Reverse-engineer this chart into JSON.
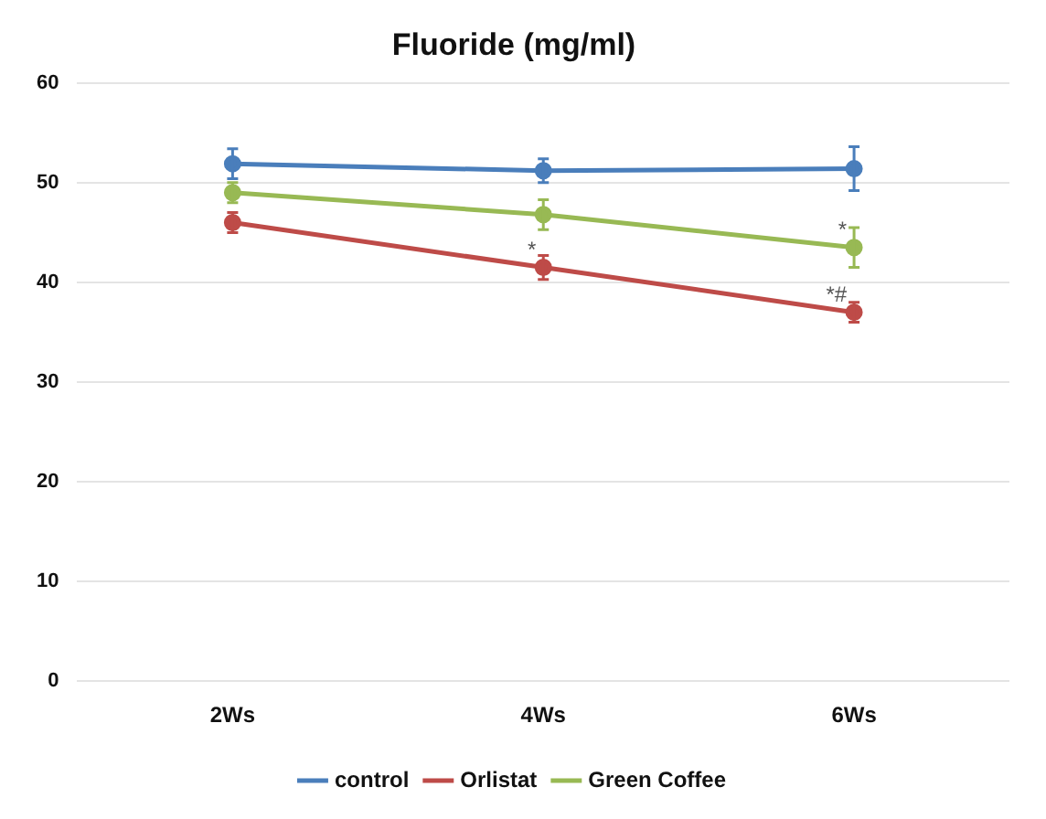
{
  "chart_data": {
    "type": "line",
    "title": "Fluoride (mg/ml)",
    "categories": [
      "2Ws",
      "4Ws",
      "6Ws"
    ],
    "series": [
      {
        "name": "control",
        "color": "#4a7ebb",
        "values": [
          51.9,
          51.2,
          51.4
        ],
        "errors": [
          1.5,
          1.2,
          2.2
        ]
      },
      {
        "name": "Orlistat",
        "color": "#be4b48",
        "values": [
          46,
          41.5,
          37
        ],
        "errors": [
          1,
          1.2,
          1
        ]
      },
      {
        "name": "Green Coffee",
        "color": "#98b954",
        "values": [
          49,
          46.8,
          43.5
        ],
        "errors": [
          1,
          1.5,
          2
        ]
      }
    ],
    "ylim": [
      0,
      60
    ],
    "yticks": [
      0,
      10,
      20,
      30,
      40,
      50,
      60
    ],
    "grid": "y",
    "legend": "bottom",
    "marker": "circle",
    "line_style": "solid",
    "annotations": [
      {
        "text": "*",
        "x": "4Ws",
        "y": 41.5
      },
      {
        "text": "*#",
        "x": "6Ws",
        "y": 37
      },
      {
        "text": "*",
        "x": "6Ws",
        "y": 43.5
      }
    ]
  }
}
